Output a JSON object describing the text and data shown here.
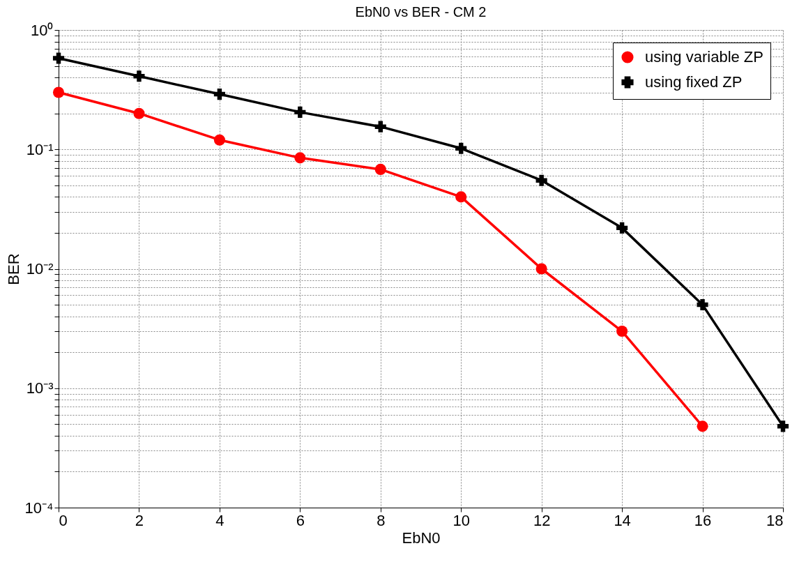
{
  "chart_data": {
    "type": "line",
    "title": "EbN0 vs BER - CM 2",
    "xlabel": "EbN0",
    "ylabel": "BER",
    "x": [
      0,
      2,
      4,
      6,
      8,
      10,
      12,
      14,
      16,
      18
    ],
    "series": [
      {
        "name": "using variable ZP",
        "color": "#ff0000",
        "marker": "circle",
        "values": [
          0.3,
          0.2,
          0.12,
          0.085,
          0.068,
          0.04,
          0.01,
          0.003,
          0.00048,
          null
        ]
      },
      {
        "name": "using fixed ZP",
        "color": "#000000",
        "marker": "cross",
        "values": [
          0.58,
          0.41,
          0.29,
          0.205,
          0.155,
          0.102,
          0.055,
          0.022,
          0.005,
          0.00048
        ]
      }
    ],
    "log": "y",
    "xlim": [
      0,
      18
    ],
    "ylim": [
      0.0001,
      1
    ],
    "xticks": [
      0,
      2,
      4,
      6,
      8,
      10,
      12,
      14,
      16,
      18
    ],
    "yticks": [
      {
        "value": 0.0001,
        "label": "10⁻⁴"
      },
      {
        "value": 0.0002,
        "label": null
      },
      {
        "value": 0.0003,
        "label": null
      },
      {
        "value": 0.0004,
        "label": null
      },
      {
        "value": 0.0005,
        "label": null
      },
      {
        "value": 0.0006,
        "label": null
      },
      {
        "value": 0.0007,
        "label": null
      },
      {
        "value": 0.0008,
        "label": null
      },
      {
        "value": 0.0009,
        "label": null
      },
      {
        "value": 0.001,
        "label": "10⁻³"
      },
      {
        "value": 0.002,
        "label": null
      },
      {
        "value": 0.003,
        "label": null
      },
      {
        "value": 0.004,
        "label": null
      },
      {
        "value": 0.005,
        "label": null
      },
      {
        "value": 0.006,
        "label": null
      },
      {
        "value": 0.007,
        "label": null
      },
      {
        "value": 0.008,
        "label": null
      },
      {
        "value": 0.009,
        "label": null
      },
      {
        "value": 0.01,
        "label": "10⁻²"
      },
      {
        "value": 0.02,
        "label": null
      },
      {
        "value": 0.03,
        "label": null
      },
      {
        "value": 0.04,
        "label": null
      },
      {
        "value": 0.05,
        "label": null
      },
      {
        "value": 0.06,
        "label": null
      },
      {
        "value": 0.07,
        "label": null
      },
      {
        "value": 0.08,
        "label": null
      },
      {
        "value": 0.09,
        "label": null
      },
      {
        "value": 0.1,
        "label": "10⁻¹"
      },
      {
        "value": 0.2,
        "label": null
      },
      {
        "value": 0.3,
        "label": null
      },
      {
        "value": 0.4,
        "label": null
      },
      {
        "value": 0.5,
        "label": null
      },
      {
        "value": 0.6,
        "label": null
      },
      {
        "value": 0.7,
        "label": null
      },
      {
        "value": 0.8,
        "label": null
      },
      {
        "value": 0.9,
        "label": null
      },
      {
        "value": 1,
        "label": "10⁰"
      }
    ],
    "grid": true,
    "legend": "top right",
    "line_style": "solid"
  }
}
